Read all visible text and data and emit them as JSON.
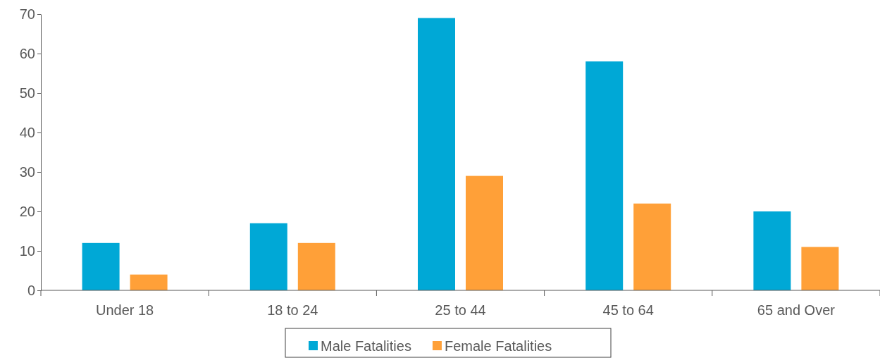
{
  "chart_data": {
    "type": "bar",
    "categories": [
      "Under 18",
      "18 to 24",
      "25 to 44",
      "45 to 64",
      "65 and Over"
    ],
    "series": [
      {
        "name": "Male Fatalities",
        "color": "#00a8d6",
        "values": [
          12,
          17,
          69,
          58,
          20
        ]
      },
      {
        "name": "Female Fatalities",
        "color": "#ffa038",
        "values": [
          4,
          12,
          29,
          22,
          11
        ]
      }
    ],
    "ylim": [
      0,
      70
    ],
    "yticks": [
      0,
      10,
      20,
      30,
      40,
      50,
      60,
      70
    ],
    "grid": false,
    "legend": "bottom"
  }
}
